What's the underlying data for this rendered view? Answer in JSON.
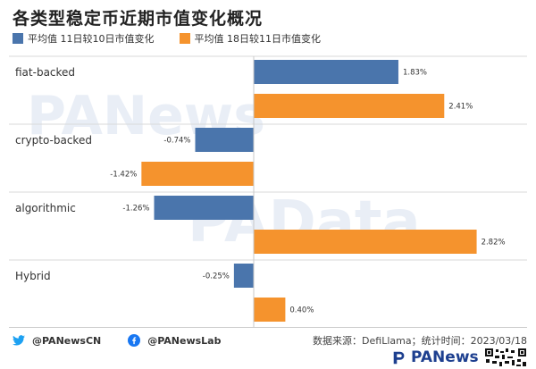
{
  "title": "各类型稳定币近期市值变化概况",
  "watermarks": [
    "PANews",
    "PAData"
  ],
  "chart_data": {
    "type": "bar",
    "orientation": "horizontal",
    "categories": [
      "fiat-backed",
      "crypto-backed",
      "algorithmic",
      "Hybrid"
    ],
    "series": [
      {
        "name": "平均值 11日较10日市值变化",
        "color": "#4a75ac",
        "values": [
          1.83,
          -0.74,
          -1.26,
          -0.25
        ],
        "labels": [
          "1.83%",
          "-0.74%",
          "-1.26%",
          "-0.25%"
        ]
      },
      {
        "name": "平均值 18日较11日市值变化",
        "color": "#f5932d",
        "values": [
          2.41,
          -1.42,
          2.82,
          0.4
        ],
        "labels": [
          "2.41%",
          "-1.42%",
          "2.82%",
          "0.40%"
        ]
      }
    ],
    "value_unit": "%",
    "legend_position": "top-left",
    "grid": false
  },
  "footer": {
    "twitter": "@PANewsCN",
    "facebook": "@PANewsLab",
    "source": "数据来源：DefiLlama；统计时间：2023/03/18",
    "brand": "PANews",
    "icons": [
      "twitter-icon",
      "facebook-icon",
      "qr-code-icon"
    ],
    "twitter_color": "#1da1f2",
    "facebook_color": "#1877f2"
  }
}
